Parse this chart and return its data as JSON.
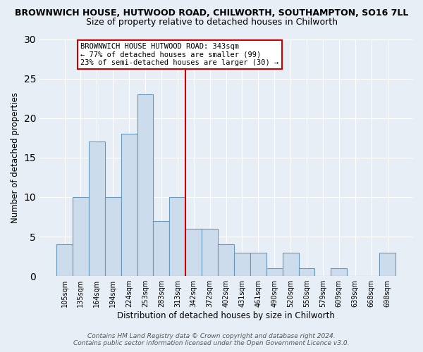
{
  "title_main": "BROWNWICH HOUSE, HUTWOOD ROAD, CHILWORTH, SOUTHAMPTON, SO16 7LL",
  "title_sub": "Size of property relative to detached houses in Chilworth",
  "xlabel": "Distribution of detached houses by size in Chilworth",
  "ylabel": "Number of detached properties",
  "bar_labels": [
    "105sqm",
    "135sqm",
    "164sqm",
    "194sqm",
    "224sqm",
    "253sqm",
    "283sqm",
    "313sqm",
    "342sqm",
    "372sqm",
    "402sqm",
    "431sqm",
    "461sqm",
    "490sqm",
    "520sqm",
    "550sqm",
    "579sqm",
    "609sqm",
    "639sqm",
    "668sqm",
    "698sqm"
  ],
  "bar_values": [
    4,
    10,
    17,
    10,
    18,
    23,
    7,
    10,
    6,
    6,
    4,
    3,
    3,
    1,
    3,
    1,
    0,
    1,
    0,
    0,
    3
  ],
  "bar_color": "#cddcec",
  "bar_edgecolor": "#6699bb",
  "vline_index": 8,
  "ylim": [
    0,
    30
  ],
  "yticks": [
    0,
    5,
    10,
    15,
    20,
    25,
    30
  ],
  "annotation_title": "BROWNWICH HOUSE HUTWOOD ROAD: 343sqm",
  "annotation_line1": "← 77% of detached houses are smaller (99)",
  "annotation_line2": "23% of semi-detached houses are larger (30) →",
  "annotation_box_facecolor": "#ffffff",
  "annotation_box_edgecolor": "#cc0000",
  "vline_color": "#cc0000",
  "footer1": "Contains HM Land Registry data © Crown copyright and database right 2024.",
  "footer2": "Contains public sector information licensed under the Open Government Licence v3.0.",
  "bg_color": "#e8eef5",
  "grid_color": "#ffffff",
  "title_fontsize": 9,
  "subtitle_fontsize": 9,
  "axis_label_fontsize": 8.5,
  "tick_fontsize": 7,
  "annotation_fontsize": 7.5,
  "footer_fontsize": 6.5
}
